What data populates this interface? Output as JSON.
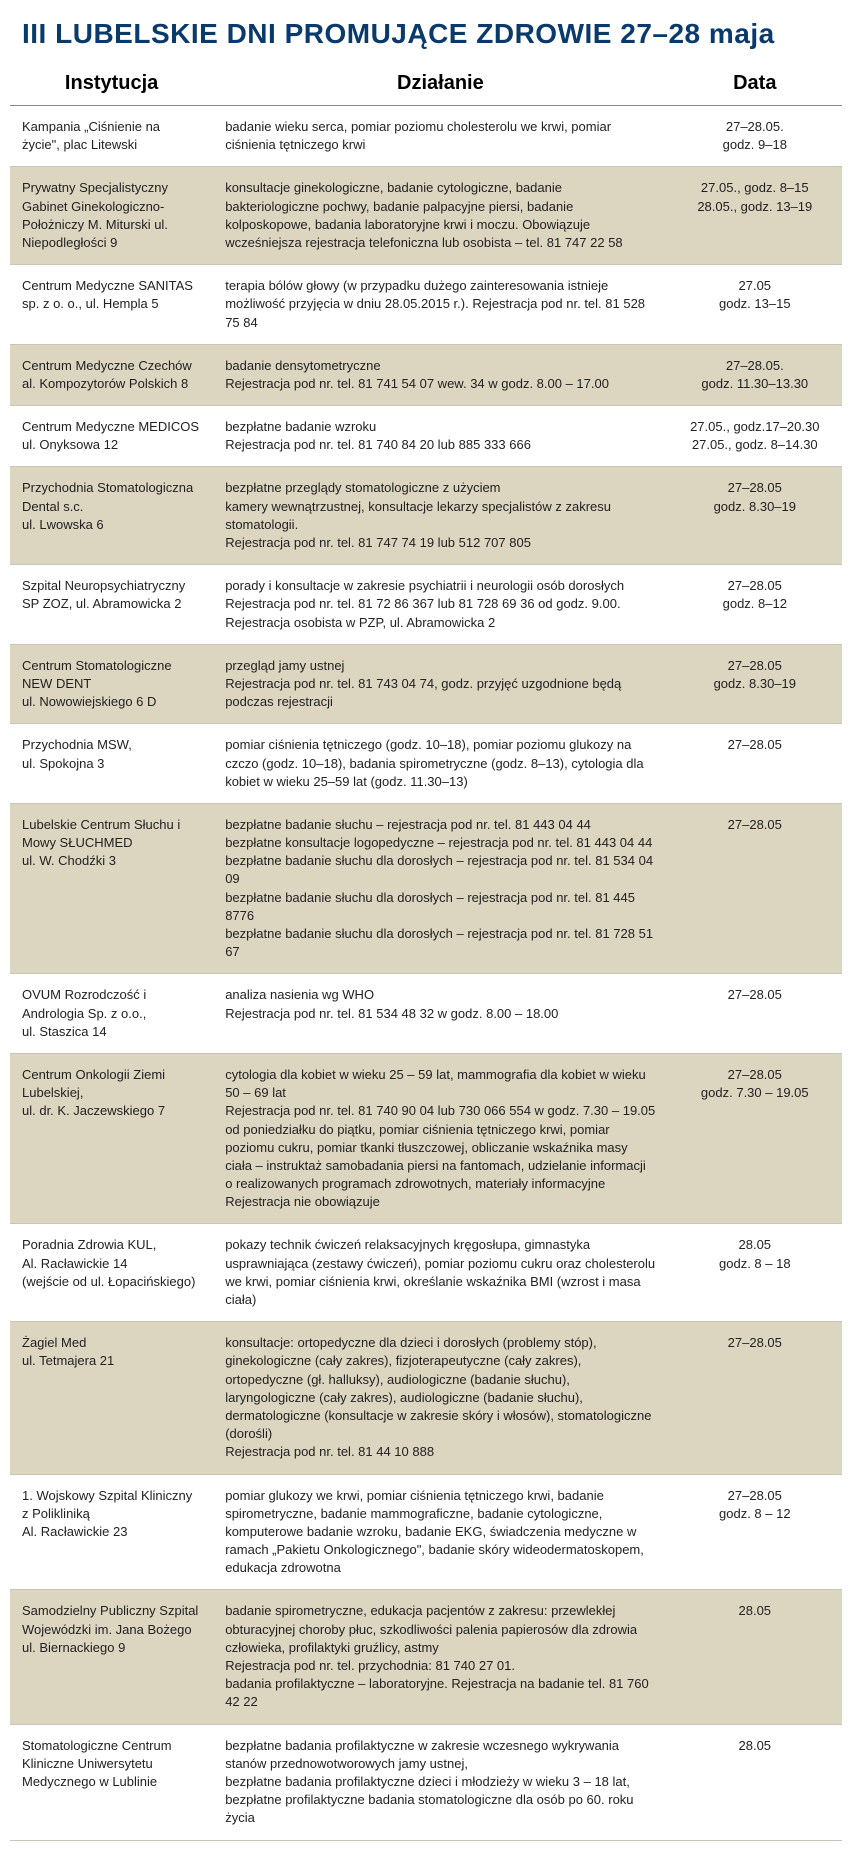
{
  "title": "III LUBELSKIE DNI PROMUJĄCE ZDROWIE 27–28 maja",
  "columns": [
    "Instytucja",
    "Działanie",
    "Data"
  ],
  "rows": [
    {
      "inst": "Kampania „Ciśnienie na życie\", plac Litewski",
      "act": "badanie wieku serca, pomiar poziomu cholesterolu we krwi, pomiar ciśnienia tętniczego krwi",
      "date": "27–28.05.\ngodz. 9–18"
    },
    {
      "inst": "Prywatny Specjalistyczny Gabinet Ginekologiczno-Położniczy M. Miturski ul. Niepodległości 9",
      "act": "konsultacje ginekologiczne, badanie cytologiczne, badanie bakteriologiczne pochwy, badanie palpacyjne piersi, badanie kolposkopowe, badania laboratoryjne krwi i moczu. Obowiązuje wcześniejsza rejestracja telefoniczna lub osobista – tel. 81 747 22 58",
      "date": "27.05., godz. 8–15\n28.05., godz. 13–19"
    },
    {
      "inst": "Centrum Medyczne SANITAS sp. z o. o., ul. Hempla 5",
      "act": "terapia bólów głowy (w przypadku dużego zainteresowania istnieje możliwość przyjęcia w dniu 28.05.2015 r.). Rejestracja pod nr. tel. 81 528 75 84",
      "date": "27.05\ngodz. 13–15"
    },
    {
      "inst": "Centrum Medyczne Czechów al. Kompozytorów Polskich 8",
      "act": "badanie densytometryczne\nRejestracja pod nr. tel. 81 741 54 07 wew. 34 w godz. 8.00 – 17.00",
      "date": "27–28.05.\ngodz. 11.30–13.30"
    },
    {
      "inst": "Centrum Medyczne MEDICOS ul. Onyksowa 12",
      "act": "bezpłatne badanie wzroku\nRejestracja pod nr. tel. 81 740 84 20 lub 885 333 666",
      "date": "27.05., godz.17–20.30\n27.05., godz. 8–14.30"
    },
    {
      "inst": "Przychodnia Stomatologiczna Dental s.c.\nul. Lwowska 6",
      "act": "bezpłatne przeglądy stomatologiczne z użyciem\nkamery wewnątrzustnej, konsultacje lekarzy specjalistów z zakresu stomatologii.\nRejestracja pod nr. tel. 81 747 74 19 lub 512 707 805",
      "date": "27–28.05\ngodz. 8.30–19"
    },
    {
      "inst": "Szpital Neuropsychiatryczny SP ZOZ, ul. Abramowicka 2",
      "act": "porady i konsultacje w zakresie psychiatrii i neurologii osób dorosłych\nRejestracja pod nr. tel. 81 72 86 367 lub 81 728 69 36 od godz. 9.00.\nRejestracja osobista w PZP, ul. Abramowicka 2",
      "date": "27–28.05\ngodz. 8–12"
    },
    {
      "inst": "Centrum Stomatologiczne NEW DENT\nul. Nowowiejskiego 6 D",
      "act": "przegląd jamy ustnej\nRejestracja pod nr. tel. 81 743 04 74, godz. przyjęć uzgodnione będą podczas rejestracji",
      "date": "27–28.05\ngodz. 8.30–19"
    },
    {
      "inst": "Przychodnia MSW,\nul. Spokojna 3",
      "act": "pomiar ciśnienia tętniczego (godz. 10–18), pomiar poziomu glukozy na czczo (godz. 10–18), badania spirometryczne (godz. 8–13), cytologia dla kobiet w wieku 25–59 lat (godz. 11.30–13)",
      "date": "27–28.05"
    },
    {
      "inst": "Lubelskie Centrum Słuchu i Mowy SŁUCHMED\nul. W. Chodźki 3",
      "act": "bezpłatne badanie słuchu – rejestracja pod nr. tel. 81 443 04 44\nbezpłatne konsultacje logopedyczne – rejestracja pod nr. tel. 81 443 04 44\nbezpłatne badanie słuchu dla dorosłych – rejestracja pod nr. tel. 81 534 04 09\nbezpłatne badanie słuchu dla dorosłych – rejestracja pod nr. tel. 81 445 8776\nbezpłatne badanie słuchu dla dorosłych – rejestracja pod nr. tel. 81 728 51 67",
      "date": "27–28.05"
    },
    {
      "inst": "OVUM Rozrodczość i Andrologia Sp. z o.o.,\nul. Staszica 14",
      "act": "analiza nasienia wg WHO\nRejestracja pod nr. tel. 81 534 48 32 w godz. 8.00 – 18.00",
      "date": "27–28.05"
    },
    {
      "inst": "Centrum Onkologii Ziemi Lubelskiej,\nul. dr. K. Jaczewskiego 7",
      "act": "cytologia dla kobiet w wieku 25 – 59 lat, mammografia dla kobiet w wieku 50 – 69 lat\nRejestracja pod nr. tel. 81 740 90 04 lub 730 066 554 w godz. 7.30 – 19.05 od poniedziałku do piątku, pomiar ciśnienia tętniczego krwi, pomiar poziomu cukru, pomiar tkanki tłuszczowej, obliczanie wskaźnika masy ciała – instruktaż samobadania piersi na fantomach, udzielanie informacji o realizowanych programach zdrowotnych, materiały informacyjne\nRejestracja nie obowiązuje",
      "date": "27–28.05\ngodz. 7.30 – 19.05"
    },
    {
      "inst": "Poradnia Zdrowia KUL,\nAl. Racławickie 14\n(wejście od ul. Łopacińskiego)",
      "act": "pokazy technik ćwiczeń relaksacyjnych kręgosłupa, gimnastyka usprawniająca (zestawy ćwiczeń), pomiar poziomu cukru oraz cholesterolu we krwi, pomiar ciśnienia krwi, określanie wskaźnika BMI (wzrost i masa ciała)",
      "date": "28.05\ngodz. 8 – 18"
    },
    {
      "inst": "Żagiel Med\nul. Tetmajera 21",
      "act": "konsultacje: ortopedyczne dla dzieci i dorosłych (problemy stóp), ginekologiczne (cały zakres), fizjoterapeutyczne (cały zakres), ortopedyczne (gł. halluksy), audiologiczne (badanie słuchu), laryngologiczne (cały zakres), audiologiczne (badanie słuchu), dermatologiczne (konsultacje w zakresie skóry i włosów), stomatologiczne (dorośli)\nRejestracja pod nr. tel. 81 44 10 888",
      "date": "27–28.05"
    },
    {
      "inst": "1. Wojskowy Szpital Kliniczny z Polikliniką\nAl. Racławickie 23",
      "act": "pomiar glukozy we krwi, pomiar ciśnienia tętniczego krwi, badanie spirometryczne, badanie mammograficzne, badanie cytologiczne, komputerowe badanie wzroku, badanie EKG, świadczenia medyczne w ramach „Pakietu Onkologicznego\", badanie skóry wideodermatoskopem, edukacja zdrowotna",
      "date": "27–28.05\ngodz. 8 – 12"
    },
    {
      "inst": "Samodzielny Publiczny Szpital Wojewódzki im. Jana Bożego ul. Biernackiego 9",
      "act": "badanie spirometryczne, edukacja pacjentów z zakresu: przewlekłej obturacyjnej choroby płuc, szkodliwości palenia papierosów dla zdrowia człowieka, profilaktyki gruźlicy, astmy\nRejestracja pod nr. tel. przychodnia: 81 740 27 01.\nbadania profilaktyczne – laboratoryjne. Rejestracja na badanie tel. 81 760 42 22",
      "date": "28.05"
    },
    {
      "inst": "Stomatologiczne Centrum Kliniczne Uniwersytetu Medycznego w Lublinie",
      "act": "bezpłatne badania profilaktyczne w zakresie wczesnego wykrywania stanów przednowotworowych jamy ustnej,\nbezpłatne badania profilaktyczne dzieci i młodzieży w wieku 3 – 18 lat, bezpłatne profilaktyczne badania stomatologiczne dla osób po 60. roku życia",
      "date": "28.05"
    }
  ],
  "colors": {
    "title": "#0a3a6b",
    "row_odd_bg": "#dcd5c0",
    "row_even_bg": "#ffffff",
    "border": "#c8c4b8"
  }
}
